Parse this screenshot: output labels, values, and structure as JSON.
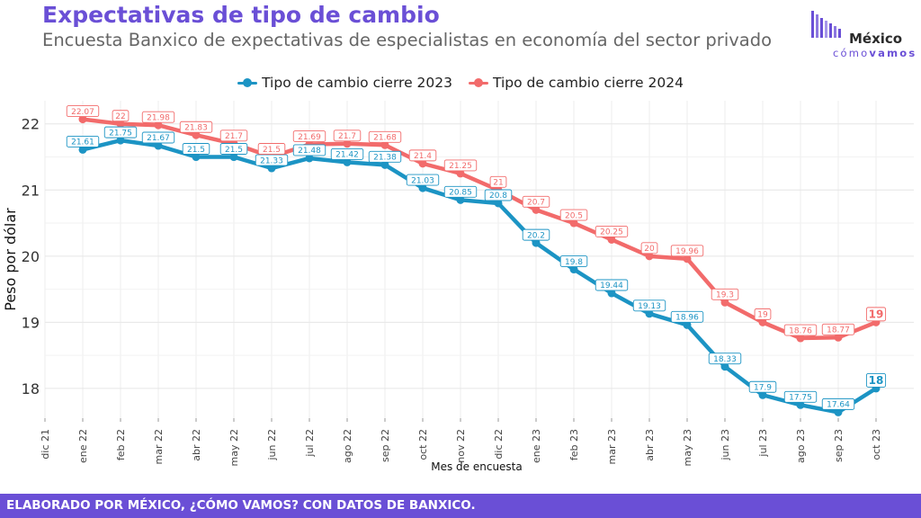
{
  "header": {
    "title": "Expectativas de tipo de cambio",
    "subtitle": "Encuesta Banxico de expectativas de especialistas en economía del sector privado"
  },
  "logo": {
    "word": "México",
    "sub_light": "cómo",
    "sub_bold": "vamos",
    "color": "#6a4fd6"
  },
  "footer": {
    "text": "ELABORADO POR MÉXICO, ¿CÓMO VAMOS? CON DATOS DE BANXICO."
  },
  "chart_data": {
    "type": "line",
    "title": "Expectativas de tipo de cambio",
    "subtitle": "Encuesta Banxico de expectativas de especialistas en economía del sector privado",
    "xlabel": "Mes de encuesta",
    "ylabel": "Peso por dólar",
    "categories": [
      "dic 21",
      "ene 22",
      "feb 22",
      "mar 22",
      "abr 22",
      "may 22",
      "jun 22",
      "jul 22",
      "ago 22",
      "sep 22",
      "oct 22",
      "nov 22",
      "dic 22",
      "ene 23",
      "feb 23",
      "mar 23",
      "abr 23",
      "may 23",
      "jun 23",
      "jul 23",
      "ago 23",
      "sep 23",
      "oct 23"
    ],
    "yticks": [
      18,
      19,
      20,
      21,
      22
    ],
    "ylim": [
      17.55,
      22.35
    ],
    "grid": true,
    "legend_position": "top",
    "series": [
      {
        "name": "Tipo de cambio cierre 2023",
        "color": "#1c94c4",
        "values": [
          null,
          21.61,
          21.75,
          21.67,
          21.5,
          21.5,
          21.33,
          21.48,
          21.42,
          21.38,
          21.03,
          20.85,
          20.8,
          20.2,
          19.8,
          19.44,
          19.13,
          18.96,
          18.33,
          17.9,
          17.75,
          17.64,
          18
        ],
        "labels": [
          "",
          "21.61",
          "21.75",
          "21.67",
          "21.5",
          "21.5",
          "21.33",
          "21.48",
          "21.42",
          "21.38",
          "21.03",
          "20.85",
          "20.8",
          "20.2",
          "19.8",
          "19.44",
          "19.13",
          "18.96",
          "18.33",
          "17.9",
          "17.75",
          "17.64",
          "18"
        ]
      },
      {
        "name": "Tipo de cambio cierre 2024",
        "color": "#f26b6b",
        "values": [
          null,
          22.07,
          22,
          21.98,
          21.83,
          21.7,
          21.5,
          21.69,
          21.7,
          21.68,
          21.4,
          21.25,
          21,
          20.7,
          20.5,
          20.25,
          20,
          19.96,
          19.3,
          19,
          18.76,
          18.77,
          19
        ],
        "labels": [
          "",
          "22.07",
          "22",
          "21.98",
          "21.83",
          "21.7",
          "21.5",
          "21.69",
          "21.7",
          "21.68",
          "21.4",
          "21.25",
          "21",
          "20.7",
          "20.5",
          "20.25",
          "20",
          "19.96",
          "19.3",
          "19",
          "18.76",
          "18.77",
          "19"
        ]
      }
    ]
  }
}
